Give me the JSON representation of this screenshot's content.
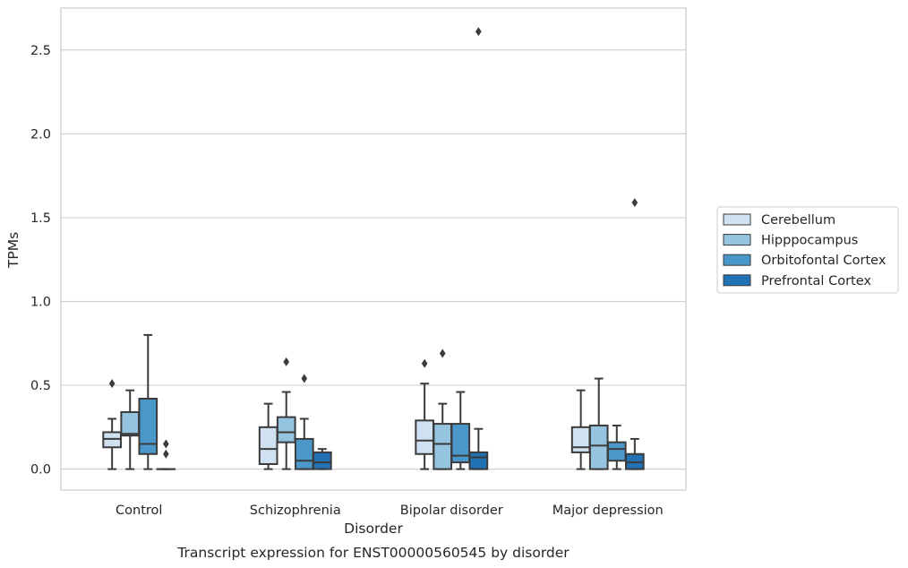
{
  "chart_data": {
    "type": "box",
    "caption": "Transcript expression for ENST00000560545 by disorder",
    "xlabel": "Disorder",
    "ylabel": "TPMs",
    "ylim": [
      -0.125,
      2.75
    ],
    "yticks": [
      0.0,
      0.5,
      1.0,
      1.5,
      2.0,
      2.5
    ],
    "ytick_labels": [
      "0.0",
      "0.5",
      "1.0",
      "1.5",
      "2.0",
      "2.5"
    ],
    "grid": true,
    "legend_position": "right",
    "categories": [
      "Control",
      "Schizophrenia",
      "Bipolar disorder",
      "Major depression"
    ],
    "series": [
      {
        "name": "Cerebellum",
        "color": "#d0e1f2",
        "boxes": [
          {
            "whisker_low": 0.0,
            "q1": 0.13,
            "median": 0.18,
            "q3": 0.22,
            "whisker_high": 0.3,
            "outliers": [
              0.51
            ]
          },
          {
            "whisker_low": 0.0,
            "q1": 0.03,
            "median": 0.12,
            "q3": 0.25,
            "whisker_high": 0.39,
            "outliers": []
          },
          {
            "whisker_low": 0.0,
            "q1": 0.09,
            "median": 0.17,
            "q3": 0.29,
            "whisker_high": 0.51,
            "outliers": [
              0.63
            ]
          },
          {
            "whisker_low": 0.0,
            "q1": 0.1,
            "median": 0.13,
            "q3": 0.25,
            "whisker_high": 0.47,
            "outliers": []
          }
        ]
      },
      {
        "name": "Hipppocampus",
        "color": "#94c4df",
        "boxes": [
          {
            "whisker_low": 0.0,
            "q1": 0.2,
            "median": 0.21,
            "q3": 0.34,
            "whisker_high": 0.47,
            "outliers": []
          },
          {
            "whisker_low": 0.0,
            "q1": 0.16,
            "median": 0.22,
            "q3": 0.31,
            "whisker_high": 0.46,
            "outliers": [
              0.64
            ]
          },
          {
            "whisker_low": 0.0,
            "q1": 0.0,
            "median": 0.15,
            "q3": 0.27,
            "whisker_high": 0.39,
            "outliers": [
              0.69
            ]
          },
          {
            "whisker_low": 0.0,
            "q1": 0.0,
            "median": 0.14,
            "q3": 0.26,
            "whisker_high": 0.54,
            "outliers": []
          }
        ]
      },
      {
        "name": "Orbitofontal Cortex",
        "color": "#4a98c9",
        "boxes": [
          {
            "whisker_low": 0.0,
            "q1": 0.09,
            "median": 0.15,
            "q3": 0.42,
            "whisker_high": 0.8,
            "outliers": []
          },
          {
            "whisker_low": 0.0,
            "q1": 0.0,
            "median": 0.05,
            "q3": 0.18,
            "whisker_high": 0.3,
            "outliers": [
              0.54
            ]
          },
          {
            "whisker_low": 0.0,
            "q1": 0.04,
            "median": 0.08,
            "q3": 0.27,
            "whisker_high": 0.46,
            "outliers": []
          },
          {
            "whisker_low": 0.0,
            "q1": 0.05,
            "median": 0.12,
            "q3": 0.16,
            "whisker_high": 0.26,
            "outliers": []
          }
        ]
      },
      {
        "name": "Prefrontal Cortex",
        "color": "#2171b5",
        "boxes": [
          {
            "whisker_low": 0.0,
            "q1": 0.0,
            "median": 0.0,
            "q3": 0.0,
            "whisker_high": 0.0,
            "outliers": [
              0.09,
              0.15
            ]
          },
          {
            "whisker_low": 0.0,
            "q1": 0.0,
            "median": 0.04,
            "q3": 0.1,
            "whisker_high": 0.12,
            "outliers": []
          },
          {
            "whisker_low": 0.0,
            "q1": 0.0,
            "median": 0.07,
            "q3": 0.1,
            "whisker_high": 0.24,
            "outliers": [
              2.61
            ]
          },
          {
            "whisker_low": 0.0,
            "q1": 0.0,
            "median": 0.04,
            "q3": 0.09,
            "whisker_high": 0.18,
            "outliers": [
              1.59
            ]
          }
        ]
      }
    ]
  }
}
